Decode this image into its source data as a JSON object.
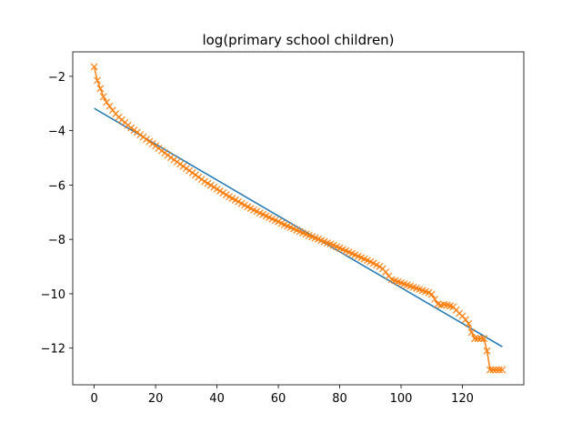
{
  "chart_data": {
    "type": "line",
    "title": "log(primary school children)",
    "xlabel": "",
    "ylabel": "",
    "xlim": [
      -7,
      140
    ],
    "ylim": [
      -13.35,
      -1.1
    ],
    "x_ticks": [
      0,
      20,
      40,
      60,
      80,
      100,
      120
    ],
    "y_ticks": [
      -2,
      -4,
      -6,
      -8,
      -10,
      -12
    ],
    "x_tick_labels": [
      "0",
      "20",
      "40",
      "60",
      "80",
      "100",
      "120"
    ],
    "y_tick_labels": [
      "−2",
      "−4",
      "−6",
      "−8",
      "−10",
      "−12"
    ],
    "grid": false,
    "legend": "none",
    "series": [
      {
        "style": "line",
        "color": "#1f77b4",
        "x": [
          0,
          133
        ],
        "y": [
          -3.18,
          -11.95
        ]
      },
      {
        "style": "line-x-markers",
        "color": "#ff7f0e",
        "x": [
          0,
          1,
          2,
          3,
          4,
          5,
          6,
          7,
          8,
          9,
          10,
          11,
          12,
          13,
          14,
          15,
          16,
          17,
          18,
          19,
          20,
          21,
          22,
          23,
          24,
          25,
          26,
          27,
          28,
          29,
          30,
          31,
          32,
          33,
          34,
          35,
          36,
          37,
          38,
          39,
          40,
          41,
          42,
          43,
          44,
          45,
          46,
          47,
          48,
          49,
          50,
          51,
          52,
          53,
          54,
          55,
          56,
          57,
          58,
          59,
          60,
          61,
          62,
          63,
          64,
          65,
          66,
          67,
          68,
          69,
          70,
          71,
          72,
          73,
          74,
          75,
          76,
          77,
          78,
          79,
          80,
          81,
          82,
          83,
          84,
          85,
          86,
          87,
          88,
          89,
          90,
          91,
          92,
          93,
          94,
          95,
          96,
          97,
          98,
          99,
          100,
          101,
          102,
          103,
          104,
          105,
          106,
          107,
          108,
          109,
          110,
          111,
          112,
          113,
          114,
          115,
          116,
          117,
          118,
          119,
          120,
          121,
          122,
          123,
          124,
          125,
          126,
          127,
          128,
          129,
          130,
          131,
          132,
          133
        ],
        "y": [
          -1.65,
          -2.15,
          -2.45,
          -2.75,
          -2.95,
          -3.1,
          -3.25,
          -3.38,
          -3.5,
          -3.6,
          -3.7,
          -3.8,
          -3.9,
          -3.98,
          -4.06,
          -4.15,
          -4.23,
          -4.32,
          -4.4,
          -4.48,
          -4.56,
          -4.65,
          -4.74,
          -4.82,
          -4.9,
          -4.99,
          -5.07,
          -5.15,
          -5.23,
          -5.31,
          -5.39,
          -5.47,
          -5.55,
          -5.63,
          -5.71,
          -5.79,
          -5.87,
          -5.94,
          -6.01,
          -6.08,
          -6.15,
          -6.22,
          -6.29,
          -6.36,
          -6.43,
          -6.49,
          -6.55,
          -6.61,
          -6.68,
          -6.74,
          -6.8,
          -6.86,
          -6.92,
          -6.97,
          -7.03,
          -7.08,
          -7.14,
          -7.19,
          -7.25,
          -7.3,
          -7.35,
          -7.41,
          -7.46,
          -7.51,
          -7.56,
          -7.61,
          -7.66,
          -7.71,
          -7.76,
          -7.81,
          -7.86,
          -7.9,
          -7.95,
          -7.99,
          -8.04,
          -8.08,
          -8.13,
          -8.17,
          -8.22,
          -8.27,
          -8.32,
          -8.37,
          -8.42,
          -8.47,
          -8.52,
          -8.57,
          -8.62,
          -8.67,
          -8.72,
          -8.77,
          -8.82,
          -8.88,
          -8.94,
          -9.0,
          -9.08,
          -9.2,
          -9.35,
          -9.48,
          -9.52,
          -9.56,
          -9.6,
          -9.64,
          -9.68,
          -9.72,
          -9.76,
          -9.8,
          -9.84,
          -9.88,
          -9.92,
          -9.96,
          -10.02,
          -10.2,
          -10.38,
          -10.42,
          -10.4,
          -10.42,
          -10.45,
          -10.48,
          -10.6,
          -10.72,
          -10.82,
          -10.95,
          -11.1,
          -11.42,
          -11.65,
          -11.65,
          -11.65,
          -11.65,
          -12.1,
          -12.8,
          -12.8,
          -12.8,
          -12.8,
          -12.8
        ]
      }
    ]
  }
}
